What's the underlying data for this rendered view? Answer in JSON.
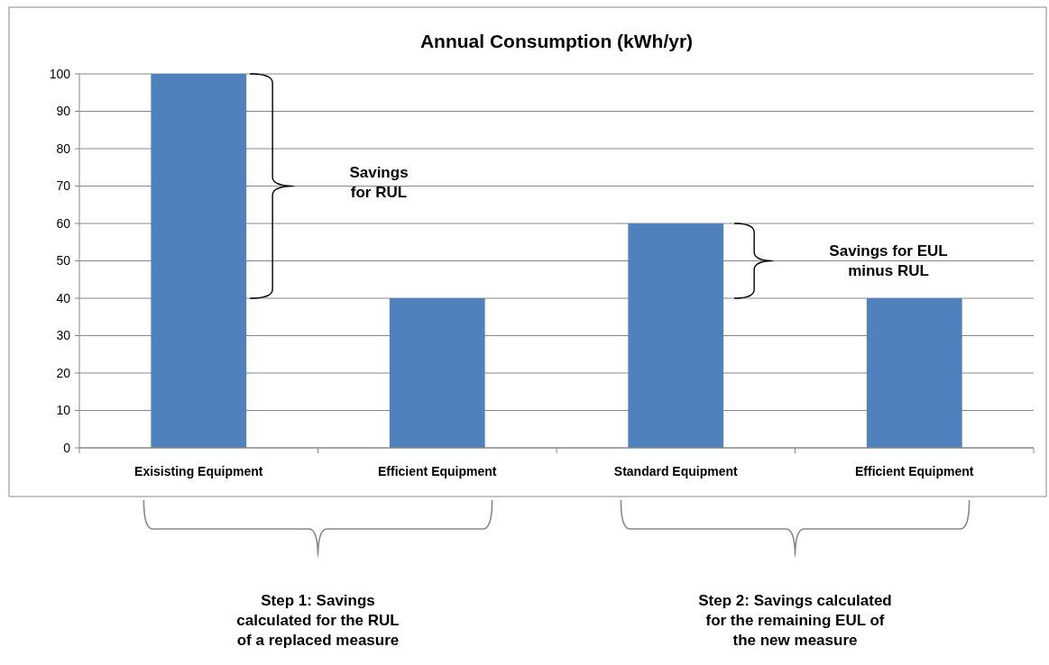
{
  "chart_data": {
    "type": "bar",
    "title": "Annual Consumption (kWh/yr)",
    "categories": [
      "Exisisting Equipment",
      "Efficient Equipment",
      "Standard Equipment",
      "Efficient Equipment"
    ],
    "values": [
      100,
      40,
      60,
      40
    ],
    "color": "#4f81bd",
    "ylim": [
      0,
      100
    ],
    "yticks": [
      0,
      10,
      20,
      30,
      40,
      50,
      60,
      70,
      80,
      90,
      100
    ],
    "grid": "y",
    "annotations": [
      "Savings\nfor RUL",
      "Savings for EUL\nminus RUL",
      "Step 1: Savings\ncalculated for the RUL\nof a replaced measure",
      "Step 2: Savings calculated\nfor the remaining EUL of\nthe new measure"
    ]
  }
}
